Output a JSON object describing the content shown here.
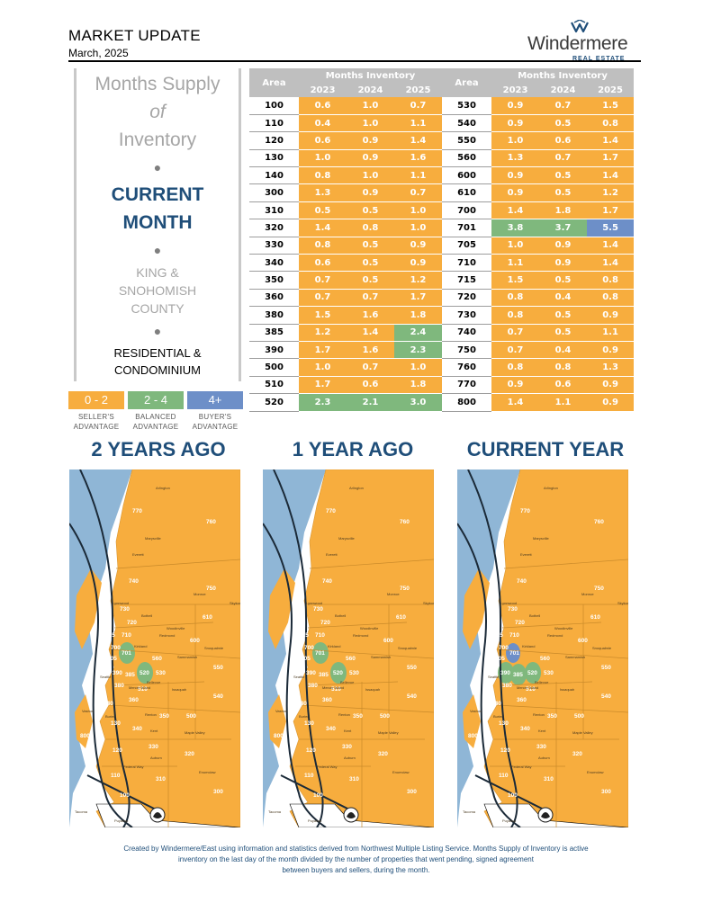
{
  "header": {
    "title": "MARKET UPDATE",
    "date": "March, 2025",
    "logo_name": "Windermere",
    "logo_sub": "REAL ESTATE"
  },
  "left_panel": {
    "line1": "Months Supply",
    "line2": "of",
    "line3": "Inventory",
    "current1": "CURRENT",
    "current2": "MONTH",
    "county1": "KING &",
    "county2": "SNOHOMISH",
    "county3": "COUNTY",
    "type1": "RESIDENTIAL &",
    "type2": "CONDOMINIUM"
  },
  "legend": [
    {
      "range": "0 - 2",
      "label1": "SELLER'S",
      "label2": "ADVANTAGE",
      "color": "#f7ad3e"
    },
    {
      "range": "2 - 4",
      "label1": "BALANCED",
      "label2": "ADVANTAGE",
      "color": "#7fb87d"
    },
    {
      "range": "4+",
      "label1": "BUYER'S",
      "label2": "ADVANTAGE",
      "color": "#6d8fc8"
    }
  ],
  "table": {
    "area_header": "Area",
    "group_header": "Months Inventory",
    "years": [
      "2023",
      "2024",
      "2025"
    ],
    "left_rows": [
      {
        "area": "100",
        "v": [
          "0.6",
          "1.0",
          "0.7"
        ]
      },
      {
        "area": "110",
        "v": [
          "0.4",
          "1.0",
          "1.1"
        ]
      },
      {
        "area": "120",
        "v": [
          "0.6",
          "0.9",
          "1.4"
        ]
      },
      {
        "area": "130",
        "v": [
          "1.0",
          "0.9",
          "1.6"
        ]
      },
      {
        "area": "140",
        "v": [
          "0.8",
          "1.0",
          "1.1"
        ]
      },
      {
        "area": "300",
        "v": [
          "1.3",
          "0.9",
          "0.7"
        ]
      },
      {
        "area": "310",
        "v": [
          "0.5",
          "0.5",
          "1.0"
        ]
      },
      {
        "area": "320",
        "v": [
          "1.4",
          "0.8",
          "1.0"
        ]
      },
      {
        "area": "330",
        "v": [
          "0.8",
          "0.5",
          "0.9"
        ]
      },
      {
        "area": "340",
        "v": [
          "0.6",
          "0.5",
          "0.9"
        ]
      },
      {
        "area": "350",
        "v": [
          "0.7",
          "0.5",
          "1.2"
        ]
      },
      {
        "area": "360",
        "v": [
          "0.7",
          "0.7",
          "1.7"
        ]
      },
      {
        "area": "380",
        "v": [
          "1.5",
          "1.6",
          "1.8"
        ]
      },
      {
        "area": "385",
        "v": [
          "1.2",
          "1.4",
          "2.4"
        ]
      },
      {
        "area": "390",
        "v": [
          "1.7",
          "1.6",
          "2.3"
        ]
      },
      {
        "area": "500",
        "v": [
          "1.0",
          "0.7",
          "1.0"
        ]
      },
      {
        "area": "510",
        "v": [
          "1.7",
          "0.6",
          "1.8"
        ]
      },
      {
        "area": "520",
        "v": [
          "2.3",
          "2.1",
          "3.0"
        ]
      }
    ],
    "right_rows": [
      {
        "area": "530",
        "v": [
          "0.9",
          "0.7",
          "1.5"
        ]
      },
      {
        "area": "540",
        "v": [
          "0.9",
          "0.5",
          "0.8"
        ]
      },
      {
        "area": "550",
        "v": [
          "1.0",
          "0.6",
          "1.4"
        ]
      },
      {
        "area": "560",
        "v": [
          "1.3",
          "0.7",
          "1.7"
        ]
      },
      {
        "area": "600",
        "v": [
          "0.9",
          "0.5",
          "1.4"
        ]
      },
      {
        "area": "610",
        "v": [
          "0.9",
          "0.5",
          "1.2"
        ]
      },
      {
        "area": "700",
        "v": [
          "1.4",
          "1.8",
          "1.7"
        ]
      },
      {
        "area": "701",
        "v": [
          "3.8",
          "3.7",
          "5.5"
        ]
      },
      {
        "area": "705",
        "v": [
          "1.0",
          "0.9",
          "1.4"
        ]
      },
      {
        "area": "710",
        "v": [
          "1.1",
          "0.9",
          "1.4"
        ]
      },
      {
        "area": "715",
        "v": [
          "1.5",
          "0.5",
          "0.8"
        ]
      },
      {
        "area": "720",
        "v": [
          "0.8",
          "0.4",
          "0.8"
        ]
      },
      {
        "area": "730",
        "v": [
          "0.8",
          "0.5",
          "0.9"
        ]
      },
      {
        "area": "740",
        "v": [
          "0.7",
          "0.5",
          "1.1"
        ]
      },
      {
        "area": "750",
        "v": [
          "0.7",
          "0.4",
          "0.9"
        ]
      },
      {
        "area": "760",
        "v": [
          "0.8",
          "0.8",
          "1.3"
        ]
      },
      {
        "area": "770",
        "v": [
          "0.9",
          "0.6",
          "0.9"
        ]
      },
      {
        "area": "800",
        "v": [
          "1.4",
          "1.1",
          "0.9"
        ]
      }
    ]
  },
  "maps": [
    {
      "title": "2 YEARS AGO",
      "green_areas": [
        "520",
        "701"
      ]
    },
    {
      "title": "1 YEAR AGO",
      "green_areas": [
        "520",
        "701"
      ]
    },
    {
      "title": "CURRENT YEAR",
      "green_areas": [
        "520",
        "385",
        "390"
      ],
      "blue_areas": [
        "701"
      ]
    }
  ],
  "map_labels": {
    "areas": [
      "770",
      "760",
      "740",
      "750",
      "730",
      "610",
      "720",
      "600",
      "715",
      "710",
      "700",
      "705",
      "701",
      "560",
      "550",
      "390",
      "385",
      "520",
      "540",
      "380",
      "530",
      "360",
      "510",
      "350",
      "500",
      "340",
      "140",
      "130",
      "330",
      "120",
      "110",
      "320",
      "310",
      "800",
      "100",
      "300"
    ],
    "cities": [
      "Arlington",
      "Marysville",
      "Everett",
      "Monroe",
      "Woodinville",
      "Bothell",
      "Kirkland",
      "Redmond",
      "Seattle",
      "Bellevue",
      "Sammamish",
      "Issaquah",
      "Snoqualmie",
      "Renton",
      "Kent",
      "Auburn",
      "Federal Way",
      "Tacoma",
      "Puyallup",
      "Enumclaw",
      "Maple Valley",
      "Burien",
      "Vashon",
      "Mercer Island",
      "Skykomish",
      "Lynnwood"
    ]
  },
  "footer": {
    "line1": "Created by Windermere/East using information and statistics derived from Northwest Multiple Listing Service. Months Supply of Inventory is active",
    "line2": "inventory on the last day of the month divided by the number of properties that went pending, signed agreement",
    "line3": "between buyers and sellers, during the month."
  },
  "colors": {
    "seller": "#f7ad3e",
    "balanced": "#7fb87d",
    "buyer": "#6d8fc8",
    "water": "#8fb6d6",
    "title_blue": "#1f4e79"
  }
}
